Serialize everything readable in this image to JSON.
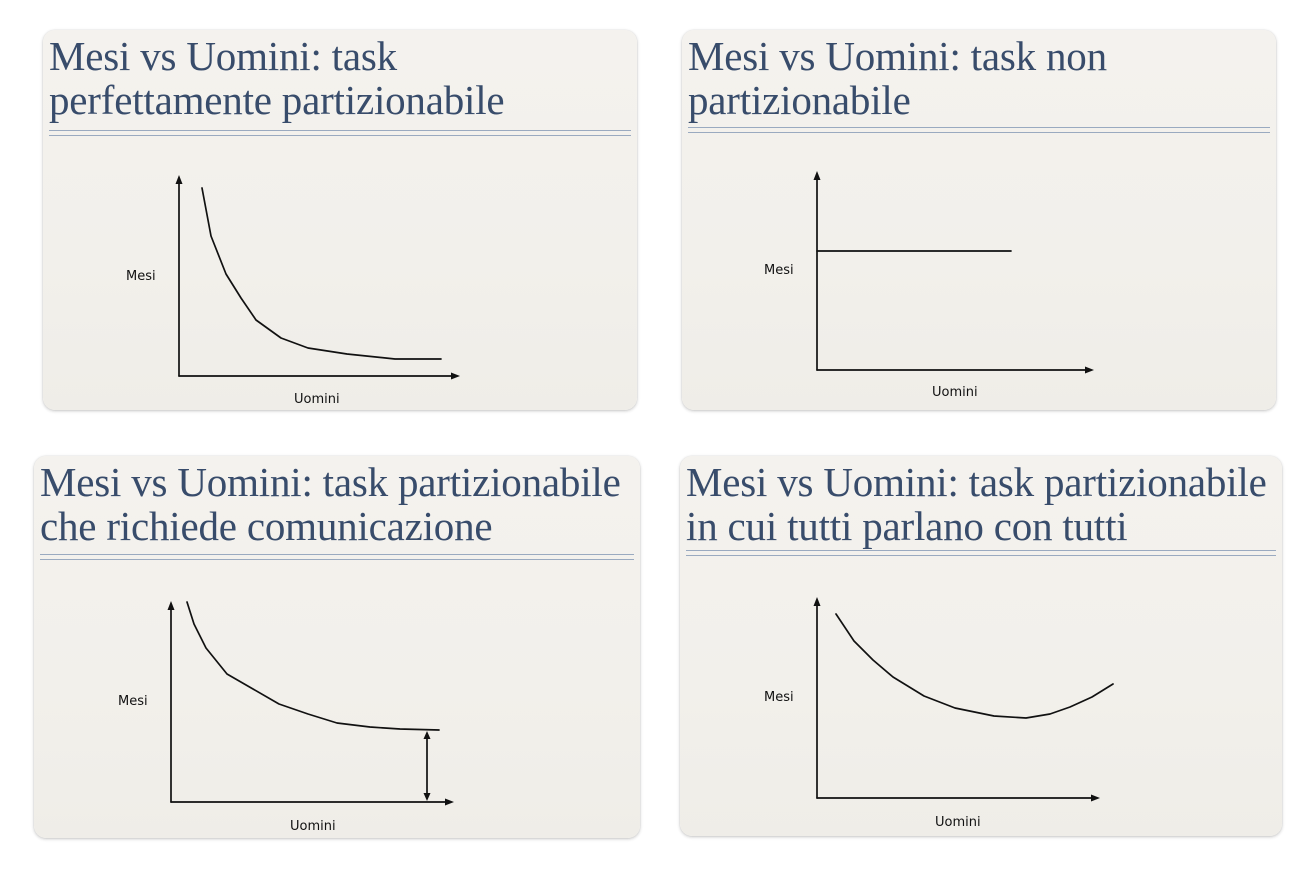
{
  "slides": [
    {
      "title_line1": "Mesi vs Uomini: task",
      "title_line2": "perfettamente partizionabile",
      "ylabel": "Mesi",
      "xlabel": "Uomini",
      "curve": "decreasing, approaching a horizontal asymptote"
    },
    {
      "title_line1": "Mesi vs Uomini: task non",
      "title_line2": "partizionabile",
      "ylabel": "Mesi",
      "xlabel": "Uomini",
      "curve": "constant horizontal line"
    },
    {
      "title_line1": "Mesi vs Uomini: task partizionabile",
      "title_line2": "che richiede comunicazione",
      "ylabel": "Mesi",
      "xlabel": "Uomini",
      "curve": "decreasing, flattening above a marked minimum",
      "marker": "double-headed vertical arrow between curve end and x axis"
    },
    {
      "title_line1": "Mesi vs Uomini: task partizionabile",
      "title_line2": "in cui tutti parlano con tutti",
      "ylabel": "Mesi",
      "xlabel": "Uomini",
      "curve": "U-shaped: decreasing then increasing"
    }
  ],
  "colors": {
    "title": "#384c6b",
    "rule": "#9aaac0",
    "slide_bg": "#f3f1ec",
    "ink": "#111111"
  }
}
